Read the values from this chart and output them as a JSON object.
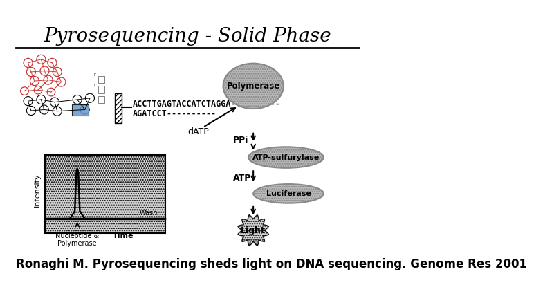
{
  "title": "Pyrosequencing - Solid Phase",
  "citation": "Ronaghi M. Pyrosequencing sheds light on DNA sequencing. Genome Res 2001",
  "bg_color": "#ffffff",
  "title_fontsize": 20,
  "citation_fontsize": 12,
  "dna_sequence_top": "ACCTTGAGTACCATCTAGGA----------",
  "dna_sequence_bot": "AGATCCT----------",
  "datp_label": "dATP",
  "ppi_label": "PPi",
  "atp_label": "ATP",
  "polymerase_label": "Polymerase",
  "atp_sulf_label": "ATP-sulfurylase",
  "luciferase_label": "Luciferase",
  "light_label": "Light",
  "intensity_label": "Intensity",
  "time_label": "Time",
  "nucleotide_label": "Nucleotide &\nPolymerase",
  "wash_label": "Wash",
  "datp_full": "dATP"
}
